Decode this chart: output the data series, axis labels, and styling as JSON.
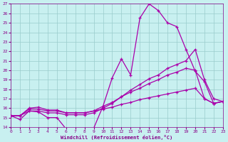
{
  "xlabel": "Windchill (Refroidissement éolien,°C)",
  "bg_color": "#c8f0f0",
  "grid_color": "#99cccc",
  "line_color": "#aa00aa",
  "x_min": 0,
  "x_max": 23,
  "y_min": 14,
  "y_max": 27,
  "series1_x": [
    0,
    1,
    2,
    3,
    4,
    5,
    6,
    7,
    8,
    9,
    10,
    11,
    12,
    13,
    14,
    15,
    16,
    17,
    18,
    19,
    20,
    21,
    22,
    23
  ],
  "series1_y": [
    15.2,
    14.8,
    15.7,
    15.6,
    15.0,
    15.0,
    13.8,
    13.8,
    13.8,
    13.9,
    16.2,
    19.2,
    21.2,
    19.5,
    25.5,
    27.0,
    26.3,
    25.0,
    24.6,
    22.2,
    19.9,
    18.8,
    16.5,
    16.7
  ],
  "series2_x": [
    0,
    1,
    2,
    3,
    4,
    5,
    6,
    7,
    8,
    9,
    10,
    11,
    12,
    13,
    14,
    15,
    16,
    17,
    18,
    19,
    20,
    21,
    22,
    23
  ],
  "series2_y": [
    15.2,
    15.2,
    15.7,
    15.7,
    15.5,
    15.5,
    15.3,
    15.3,
    15.3,
    15.5,
    16.0,
    16.5,
    17.2,
    17.9,
    18.5,
    19.1,
    19.5,
    20.2,
    20.6,
    21.0,
    22.2,
    19.0,
    17.0,
    16.7
  ],
  "series3_x": [
    0,
    1,
    2,
    3,
    4,
    5,
    6,
    7,
    8,
    9,
    10,
    11,
    12,
    13,
    14,
    15,
    16,
    17,
    18,
    19,
    20,
    21,
    22,
    23
  ],
  "series3_y": [
    15.2,
    15.2,
    15.9,
    15.9,
    15.7,
    15.7,
    15.5,
    15.5,
    15.5,
    15.7,
    16.2,
    16.6,
    17.2,
    17.7,
    18.1,
    18.6,
    19.0,
    19.5,
    19.8,
    20.2,
    20.0,
    17.0,
    16.5,
    16.7
  ],
  "series4_x": [
    0,
    1,
    2,
    3,
    4,
    5,
    6,
    7,
    8,
    9,
    10,
    11,
    12,
    13,
    14,
    15,
    16,
    17,
    18,
    19,
    20,
    21,
    22,
    23
  ],
  "series4_y": [
    15.2,
    15.2,
    16.0,
    16.1,
    15.8,
    15.8,
    15.5,
    15.5,
    15.5,
    15.7,
    15.9,
    16.1,
    16.4,
    16.6,
    16.9,
    17.1,
    17.3,
    17.5,
    17.7,
    17.9,
    18.1,
    17.0,
    16.5,
    16.7
  ]
}
